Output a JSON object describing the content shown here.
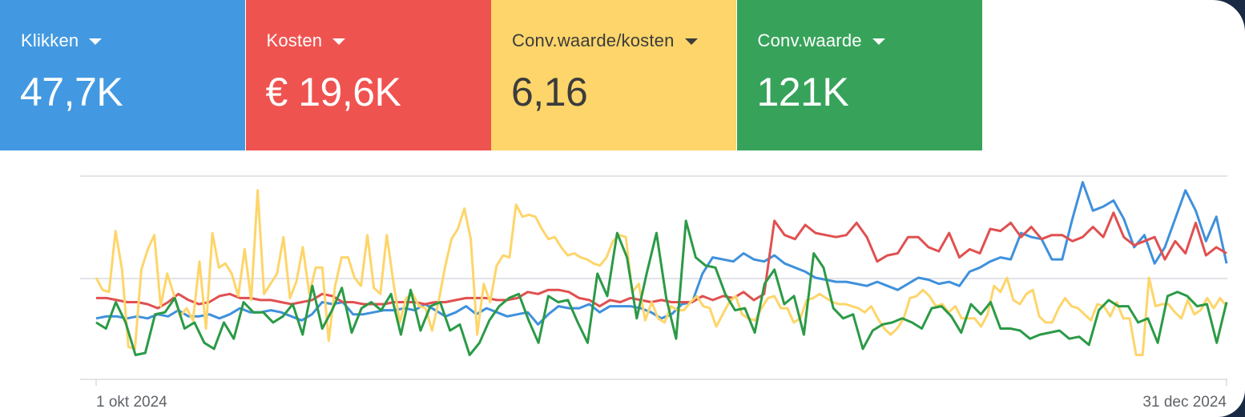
{
  "tiles": [
    {
      "label": "Klikken",
      "value": "47,7K",
      "bg": "#4299e1",
      "fg": "#ffffff"
    },
    {
      "label": "Kosten",
      "value": "€ 19,6K",
      "bg": "#ef5350",
      "fg": "#ffffff"
    },
    {
      "label": "Conv.waarde/kosten",
      "value": "6,16",
      "bg": "#fdd56a",
      "fg": "#3c3c3c"
    },
    {
      "label": "Conv.waarde",
      "value": "121K",
      "bg": "#37a35a",
      "fg": "#ffffff"
    }
  ],
  "chart_data": {
    "type": "line",
    "x_start_label": "1 okt 2024",
    "x_end_label": "31 dec 2024",
    "x_start": "2024-10-01",
    "x_end": "2024-12-31",
    "grid": true,
    "ylim": [
      0,
      100
    ],
    "series": [
      {
        "name": "Klikken",
        "color": "#3f91dc",
        "values": [
          30,
          31,
          31,
          30,
          31,
          30,
          32,
          31,
          34,
          31,
          31,
          32,
          30,
          32,
          35,
          33,
          33,
          34,
          33,
          31,
          29,
          32,
          38,
          37,
          38,
          32,
          32,
          33,
          34,
          34,
          35,
          34,
          37,
          34,
          31,
          33,
          36,
          32,
          35,
          33,
          31,
          32,
          33,
          27,
          32,
          36,
          35,
          35,
          37,
          33,
          36,
          36,
          36,
          35,
          33,
          30,
          32,
          37,
          38,
          52,
          60,
          59,
          58,
          62,
          59,
          58,
          61,
          57,
          55,
          53,
          50,
          49,
          48,
          48,
          47,
          46,
          48,
          46,
          44,
          47,
          50,
          49,
          47,
          48,
          46,
          53,
          55,
          58,
          60,
          59,
          72,
          70,
          69,
          59,
          59,
          79,
          97,
          83,
          85,
          88,
          79,
          65,
          71,
          57,
          65,
          79,
          93,
          83,
          68,
          80,
          57
        ]
      },
      {
        "name": "Kosten",
        "color": "#e05050",
        "values": [
          40,
          40,
          39,
          38,
          38,
          37,
          35,
          38,
          42,
          39,
          37,
          38,
          41,
          42,
          40,
          40,
          39,
          39,
          38,
          37,
          38,
          39,
          42,
          41,
          38,
          38,
          37,
          37,
          37,
          38,
          38,
          38,
          37,
          38,
          38,
          39,
          40,
          40,
          40,
          39,
          39,
          40,
          43,
          42,
          44,
          44,
          43,
          40,
          39,
          36,
          39,
          38,
          40,
          39,
          38,
          39,
          38,
          38,
          38,
          41,
          39,
          41,
          40,
          43,
          39,
          42,
          78,
          71,
          69,
          76,
          72,
          71,
          70,
          71,
          77,
          70,
          58,
          61,
          62,
          70,
          70,
          65,
          63,
          72,
          60,
          64,
          62,
          74,
          73,
          77,
          70,
          75,
          69,
          71,
          71,
          68,
          70,
          75,
          70,
          82,
          70,
          66,
          68,
          70,
          59,
          68,
          62,
          77,
          61,
          65,
          62
        ]
      },
      {
        "name": "Conv.waarde/kosten",
        "color": "#fdd56a",
        "values": [
          50,
          44,
          43,
          73,
          54,
          16,
          15,
          54,
          64,
          71,
          36,
          52,
          42,
          31,
          35,
          29,
          58,
          25,
          72,
          55,
          57,
          52,
          41,
          64,
          39,
          93,
          42,
          47,
          52,
          70,
          40,
          48,
          65,
          42,
          55,
          55,
          19,
          46,
          60,
          60,
          50,
          46,
          71,
          45,
          42,
          71,
          48,
          28,
          40,
          42,
          36,
          35,
          24,
          38,
          55,
          69,
          74,
          84,
          69,
          22,
          47,
          38,
          56,
          61,
          60,
          86,
          80,
          81,
          80,
          74,
          69,
          70,
          65,
          61,
          62,
          60,
          59,
          57,
          56,
          60,
          68,
          71,
          70,
          43,
          47,
          29,
          38,
          30,
          28,
          36,
          34,
          34,
          38,
          41,
          36,
          35,
          26,
          32,
          38,
          41,
          32,
          30,
          29,
          35,
          40,
          41,
          35,
          35,
          28,
          30,
          39,
          40,
          42,
          40,
          38,
          37,
          37,
          36,
          35,
          33,
          36,
          30,
          25,
          22,
          25,
          30,
          40,
          41,
          44,
          41,
          36,
          37,
          33,
          36,
          30,
          30,
          30,
          26,
          32,
          46,
          43,
          50,
          39,
          37,
          42,
          44,
          31,
          28,
          28,
          35,
          40,
          36,
          35,
          32,
          29,
          37,
          36,
          31,
          38,
          30,
          30,
          12,
          12,
          50,
          36,
          37,
          37,
          33,
          30,
          39,
          32,
          34,
          40,
          35,
          40,
          36
        ]
      },
      {
        "name": "Conv.waarde",
        "color": "#2b9a46",
        "values": [
          28,
          25,
          38,
          28,
          12,
          13,
          32,
          33,
          40,
          25,
          28,
          18,
          15,
          28,
          20,
          38,
          33,
          33,
          28,
          31,
          37,
          22,
          46,
          25,
          34,
          45,
          23,
          35,
          38,
          34,
          42,
          22,
          44,
          24,
          36,
          38,
          24,
          27,
          12,
          18,
          29,
          36,
          40,
          42,
          29,
          18,
          41,
          38,
          39,
          28,
          18,
          52,
          41,
          72,
          60,
          30,
          52,
          72,
          40,
          20,
          78,
          60,
          56,
          55,
          42,
          34,
          35,
          23,
          47,
          54,
          37,
          41,
          22,
          62,
          55,
          35,
          30,
          32,
          15,
          24,
          27,
          28,
          30,
          28,
          25,
          35,
          36,
          31,
          23,
          37,
          32,
          38,
          25,
          25,
          24,
          20,
          22,
          23,
          24,
          20,
          21,
          17,
          34,
          39,
          36,
          36,
          28,
          30,
          18,
          41,
          43,
          41,
          36,
          37,
          18,
          38
        ]
      }
    ]
  }
}
